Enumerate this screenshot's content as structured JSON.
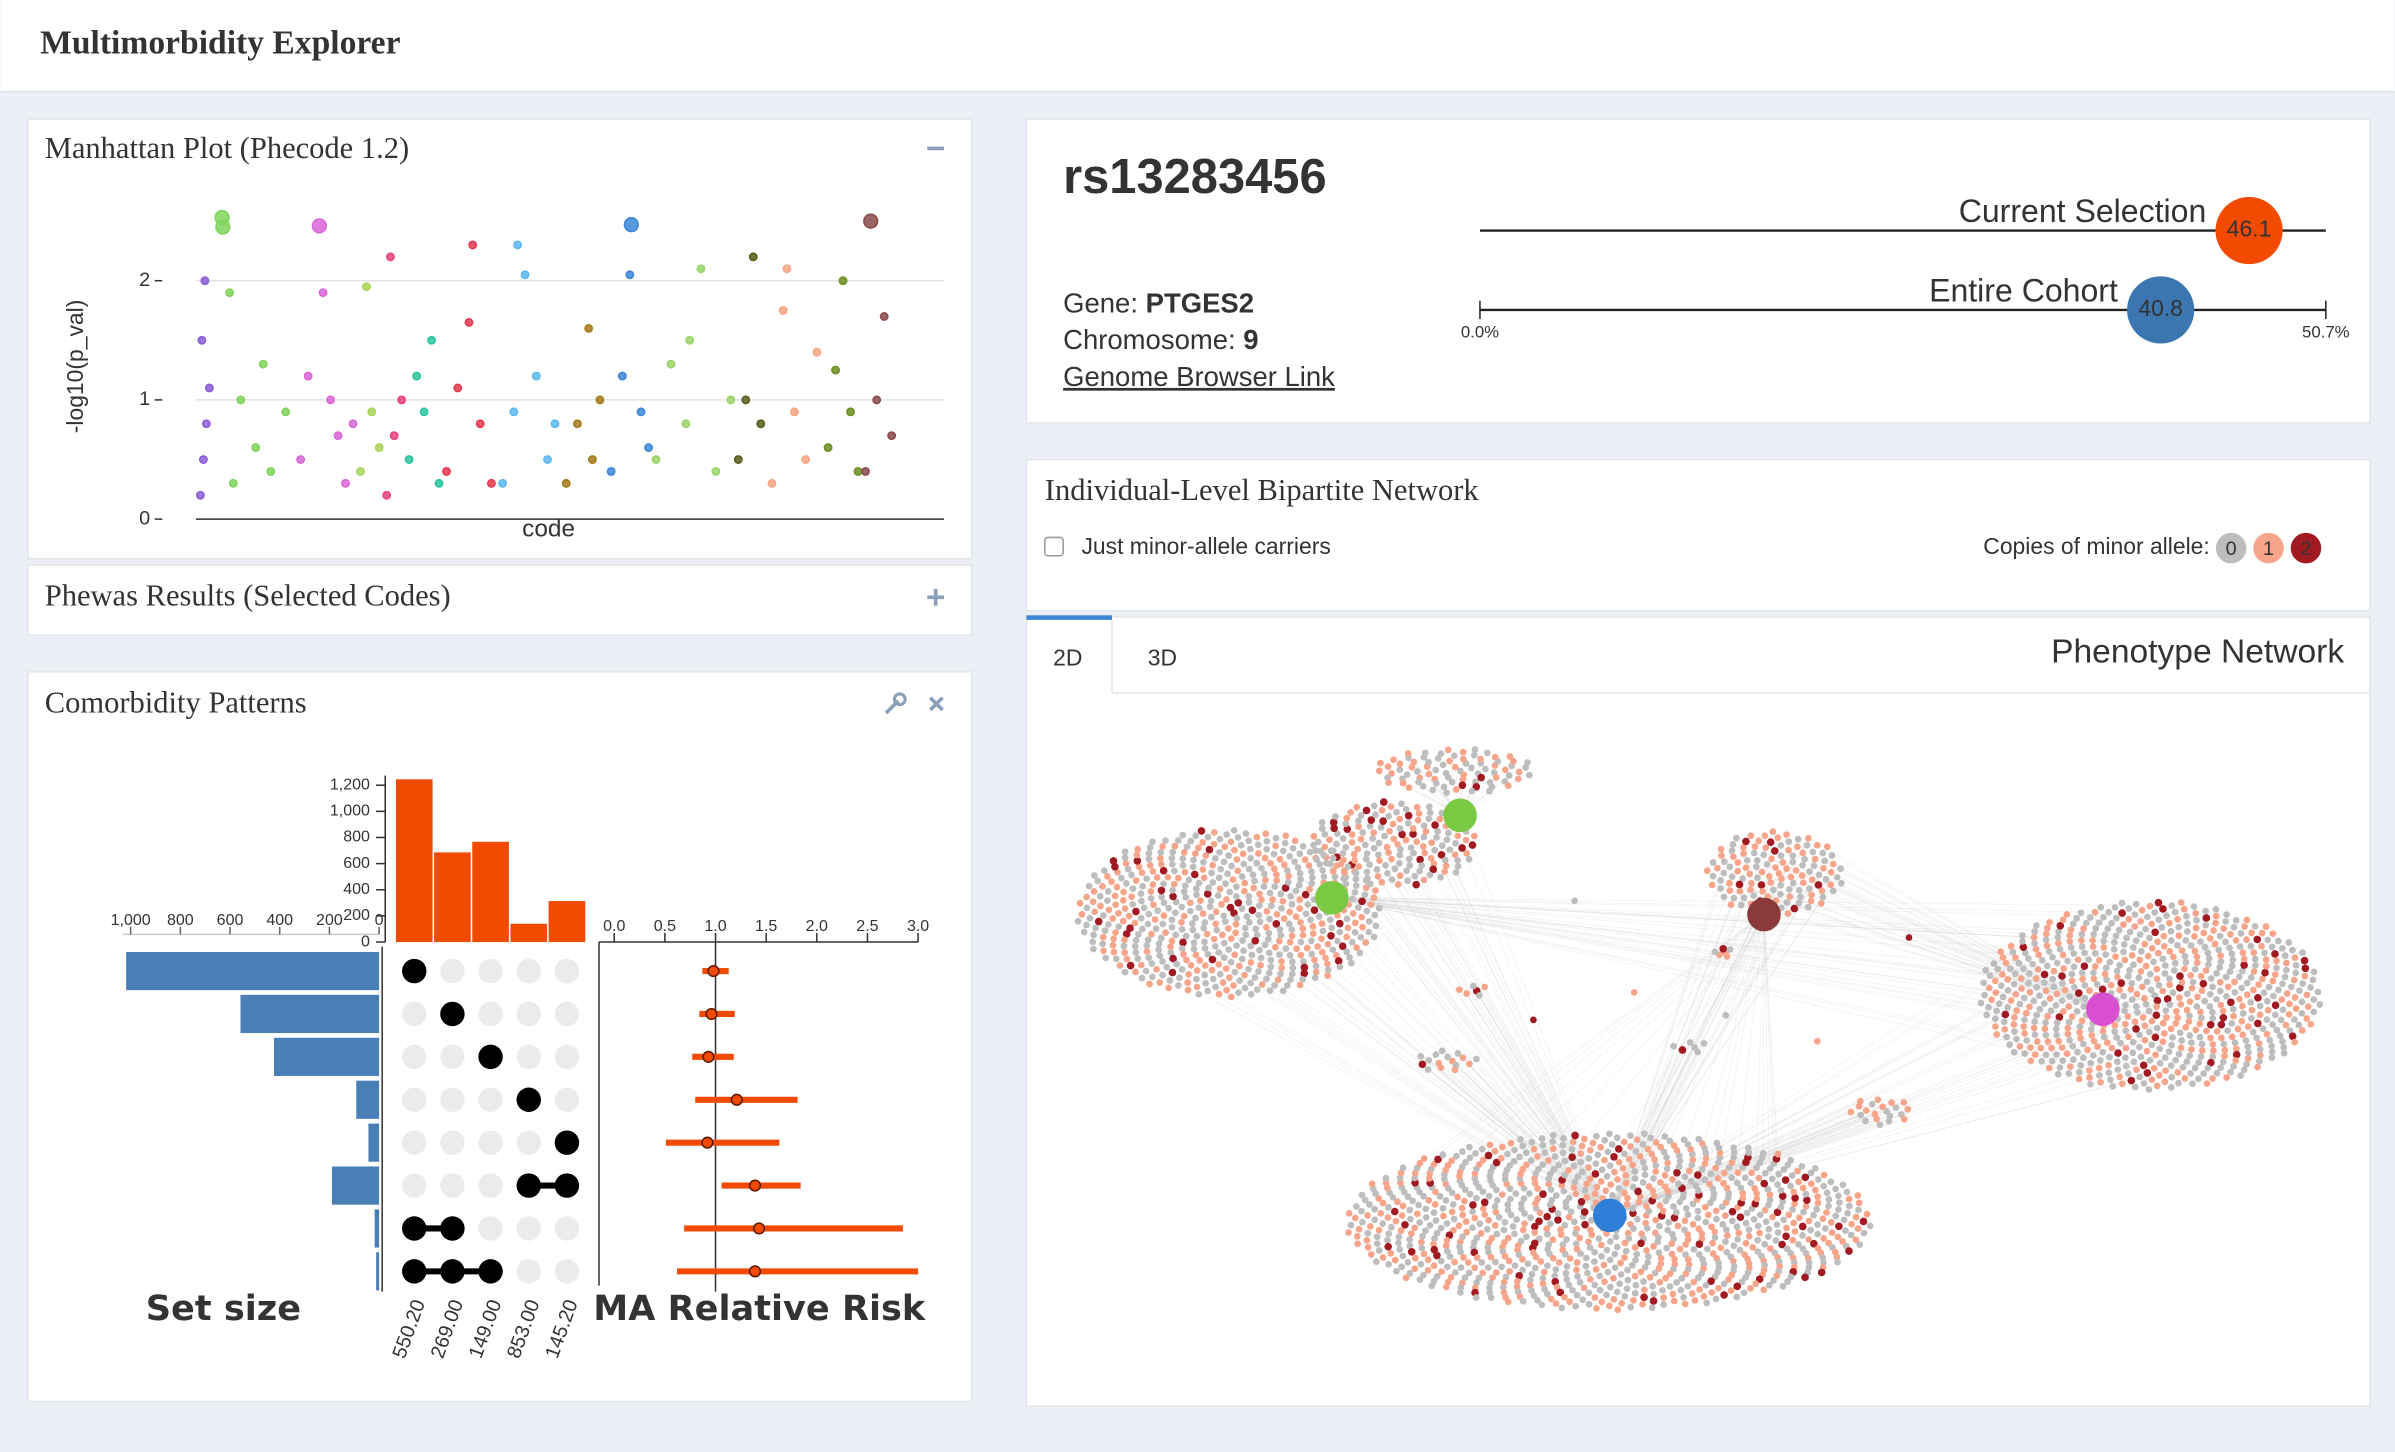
{
  "header": {
    "title": "Multimorbidity Explorer"
  },
  "manhattan_panel": {
    "title": "Manhattan Plot (Phecode 1.2)"
  },
  "phewas_panel": {
    "title": "Phewas Results (Selected Codes)"
  },
  "comorbidity_panel": {
    "title": "Comorbidity Patterns"
  },
  "snp_panel": {
    "snp": "rs13283456",
    "gene_label": "Gene:",
    "gene": "PTGES2",
    "chromosome_label": "Chromosome:",
    "chromosome": "9",
    "link": "Genome Browser Link"
  },
  "network_panel": {
    "title": "Individual-Level Bipartite Network",
    "checkbox_label": "Just minor-allele carriers",
    "legend_label": "Copies of minor allele:",
    "legend_items": [
      0,
      1,
      2
    ],
    "legend_colors": [
      "#bdbdbd",
      "#f6a58a",
      "#a11a22"
    ],
    "tabs": [
      "2D",
      "3D"
    ],
    "view_title": "Phenotype Network"
  },
  "chart_data": [
    {
      "type": "scatter",
      "x_label": "code",
      "y_label": "-log10(p_val)",
      "xlim": [
        0,
        100
      ],
      "ylim": [
        0,
        2.6
      ],
      "yticks": [
        0,
        1,
        2
      ],
      "grid": true,
      "series": [
        {
          "color": "#8a5cd6",
          "x": [
            0.6,
            1.0,
            1.4,
            1.8,
            0.8,
            1.2
          ],
          "values": [
            0.2,
            0.5,
            0.8,
            1.1,
            1.5,
            2.0
          ]
        },
        {
          "color": "#7fd35a",
          "x": [
            3.5,
            3.6,
            4.5,
            6,
            8,
            10,
            12,
            5,
            9
          ],
          "values": [
            2.53,
            2.45,
            1.9,
            1.0,
            0.6,
            0.4,
            0.9,
            0.3,
            1.3
          ]
        },
        {
          "color": "#d966d6",
          "x": [
            14,
            16.5,
            17,
            18,
            19,
            20,
            15,
            21
          ],
          "values": [
            0.5,
            2.46,
            1.9,
            1.0,
            0.7,
            0.3,
            1.2,
            0.8
          ]
        },
        {
          "color": "#a9d35a",
          "x": [
            22,
            22.8,
            23.5,
            24.5
          ],
          "values": [
            0.4,
            1.95,
            0.9,
            0.6
          ]
        },
        {
          "color": "#e8437a",
          "x": [
            25.5,
            26.5,
            27.5,
            26
          ],
          "values": [
            0.2,
            0.7,
            1.0,
            2.2
          ]
        },
        {
          "color": "#2ac49c",
          "x": [
            28.5,
            29.5,
            30.5,
            31.5,
            32.5
          ],
          "values": [
            0.5,
            1.2,
            0.9,
            1.5,
            0.3
          ]
        },
        {
          "color": "#e8384f",
          "x": [
            33.5,
            35,
            36.5,
            38,
            39.5,
            37
          ],
          "values": [
            0.4,
            1.1,
            1.65,
            0.8,
            0.3,
            2.3
          ]
        },
        {
          "color": "#5db8f0",
          "x": [
            41,
            42.5,
            44,
            45.5,
            47,
            48,
            43
          ],
          "values": [
            0.3,
            0.9,
            2.05,
            1.2,
            0.5,
            0.8,
            2.3
          ]
        },
        {
          "color": "#a37a1a",
          "x": [
            49.5,
            51,
            52.5,
            54,
            53
          ],
          "values": [
            0.3,
            0.8,
            1.6,
            1.0,
            0.5
          ]
        },
        {
          "color": "#3b86d6",
          "x": [
            55.5,
            57,
            58.2,
            59.5,
            60.5,
            58
          ],
          "values": [
            0.4,
            1.2,
            2.47,
            0.9,
            0.6,
            2.05
          ]
        },
        {
          "color": "#9bd56a",
          "x": [
            61.5,
            63.5,
            65.5,
            67.5,
            69.5,
            71.5,
            66
          ],
          "values": [
            0.5,
            1.3,
            0.8,
            2.1,
            0.4,
            1.0,
            1.5
          ]
        },
        {
          "color": "#5a5a1a",
          "x": [
            72.5,
            73.5,
            74.5,
            75.5
          ],
          "values": [
            0.5,
            1.0,
            2.2,
            0.8
          ]
        },
        {
          "color": "#f4a582",
          "x": [
            77,
            78.5,
            80,
            81.5,
            83,
            79
          ],
          "values": [
            0.3,
            1.75,
            0.9,
            0.5,
            1.4,
            2.1
          ]
        },
        {
          "color": "#6b8e23",
          "x": [
            84.5,
            85.5,
            86.5,
            87.5,
            88.5
          ],
          "values": [
            0.6,
            1.25,
            2.0,
            0.9,
            0.4
          ]
        },
        {
          "color": "#8b4a4a",
          "x": [
            89.5,
            90.2,
            91,
            92,
            93
          ],
          "values": [
            0.4,
            2.5,
            1.0,
            1.7,
            0.7
          ]
        }
      ]
    },
    {
      "type": "bar",
      "categories": [
        "550.20",
        "269.00",
        "149.00",
        "853.00",
        "145.20"
      ],
      "values": [
        1245,
        686,
        767,
        140,
        314
      ],
      "color": "#f24a00",
      "ylim": [
        0,
        1250
      ],
      "yticks": [
        0,
        200,
        400,
        600,
        800,
        {
          "value": 1000,
          "label": "1,000"
        },
        {
          "value": 1200,
          "label": "1,200"
        }
      ]
    },
    {
      "type": "hbar",
      "x_label": "Set size",
      "values": [
        1018,
        558,
        423,
        92,
        43,
        190,
        18,
        12
      ],
      "sets": [
        [
          0
        ],
        [
          1
        ],
        [
          2
        ],
        [
          3
        ],
        [
          4
        ],
        [
          3,
          4
        ],
        [
          0,
          1
        ],
        [
          0,
          1,
          2
        ]
      ],
      "color": "#4a7fb5",
      "xlim": [
        0,
        1020
      ],
      "xticks": [
        0,
        200,
        400,
        600,
        800,
        {
          "value": 1000,
          "label": "1,000"
        }
      ]
    },
    {
      "type": "errorbar",
      "x_label": "MA Relative Risk",
      "values": [
        0.98,
        0.96,
        0.93,
        1.21,
        0.92,
        1.39,
        1.43,
        1.39
      ],
      "lower": [
        0.87,
        0.84,
        0.77,
        0.8,
        0.51,
        1.06,
        0.69,
        0.62
      ],
      "upper": [
        1.13,
        1.19,
        1.18,
        1.81,
        1.63,
        1.84,
        2.85,
        3.0
      ],
      "reference_line": 1,
      "color": "#f24a00",
      "xlim": [
        0,
        3
      ],
      "xticks": [
        {
          "value": 0,
          "label": "0.0"
        },
        0.5,
        {
          "value": 1,
          "label": "1.0"
        },
        1.5,
        {
          "value": 2,
          "label": "2.0"
        },
        2.5,
        {
          "value": 3,
          "label": "3.0"
        }
      ]
    },
    {
      "type": "dot-bar",
      "categories": [
        "Current Selection",
        "Entire Cohort"
      ],
      "values": [
        46.1,
        40.8
      ],
      "colors": [
        "#f24a00",
        "#3b76b0"
      ],
      "xlim": [
        0,
        50.7
      ],
      "xticks": [
        {
          "value": 0,
          "label": "0.0%"
        },
        {
          "value": 50.7,
          "label": "50.7%"
        }
      ]
    }
  ]
}
